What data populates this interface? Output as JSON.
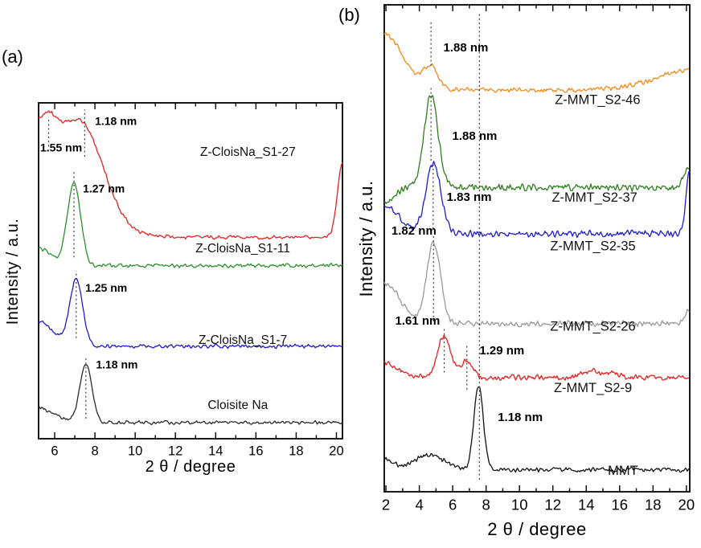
{
  "panels": [
    {
      "id": "a",
      "label": "(a)",
      "xlabel": "2 θ / degree",
      "ylabel": "Intensity / a.u."
    },
    {
      "id": "b",
      "label": "(b)",
      "xlabel": "2 θ / degree",
      "ylabel": "Intensity / a.u."
    }
  ],
  "chart_data": [
    {
      "type": "line",
      "panel": "a",
      "title": "",
      "xlabel": "2 θ / degree",
      "ylabel": "Intensity / a.u.",
      "xlim": [
        5.2,
        20.3
      ],
      "xticks": [
        6,
        8,
        10,
        12,
        14,
        16,
        18,
        20
      ],
      "grid": false,
      "legend": "inline-labels",
      "series": [
        {
          "name": "Cloisite Na",
          "color": "#2a2a2a",
          "seed": 11,
          "label_x": 15.1,
          "label_y": 0.098,
          "profile": {
            "base": 0.048,
            "noise": 0.013,
            "bg": [],
            "peaks": [
              {
                "x": 7.55,
                "h": 0.175,
                "w": 0.3
              },
              {
                "x": 4.9,
                "h": 0.05,
                "w": 0.9
              }
            ]
          },
          "peak_labels": [
            {
              "text": "1.18 nm",
              "x": 8.05,
              "y": 0.218
            }
          ],
          "vlines": [
            {
              "x": 7.55,
              "y1": 0.06,
              "y2": 0.245
            }
          ]
        },
        {
          "name": "Z-CloisNa_S1-7",
          "color": "#1c1ccf",
          "seed": 22,
          "label_x": 15.35,
          "label_y": 0.292,
          "profile": {
            "base": 0.275,
            "noise": 0.014,
            "bg": [
              {
                "type": "left",
                "h": 0.075,
                "w": 1.0
              }
            ],
            "peaks": [
              {
                "x": 7.07,
                "h": 0.195,
                "w": 0.33
              }
            ]
          },
          "peak_labels": [
            {
              "text": "1.25 nm",
              "x": 7.52,
              "y": 0.447
            }
          ],
          "vlines": [
            {
              "x": 7.07,
              "y1": 0.3,
              "y2": 0.5
            }
          ]
        },
        {
          "name": "Z-CloisNa_S1-11",
          "color": "#2a8f2a",
          "seed": 33,
          "label_x": 15.35,
          "label_y": 0.565,
          "profile": {
            "base": 0.515,
            "noise": 0.014,
            "bg": [
              {
                "type": "left",
                "h": 0.05,
                "w": 0.9
              }
            ],
            "peaks": [
              {
                "x": 6.96,
                "h": 0.25,
                "w": 0.33
              }
            ]
          },
          "peak_labels": [
            {
              "text": "1.27 nm",
              "x": 7.4,
              "y": 0.742
            }
          ],
          "vlines": [
            {
              "x": 6.96,
              "y1": 0.54,
              "y2": 0.8
            }
          ]
        },
        {
          "name": "Z-CloisNa_S1-27",
          "color": "#e82020",
          "seed": 44,
          "label_x": 15.6,
          "label_y": 0.852,
          "profile": {
            "base": 0.6,
            "noise": 0.013,
            "bg": [
              {
                "type": "sigmoid",
                "h": 0.35,
                "x0": 8.6,
                "k": 0.55
              },
              {
                "type": "right",
                "h": 0.22,
                "w": 0.35
              }
            ],
            "peaks": [
              {
                "x": 5.7,
                "h": 0.025,
                "w": 0.25
              },
              {
                "x": 7.49,
                "h": 0.03,
                "w": 0.4
              }
            ]
          },
          "peak_labels": [
            {
              "text": "1.55 nm",
              "x": 5.28,
              "y": 0.864
            },
            {
              "text": "1.18 nm",
              "x": 8.0,
              "y": 0.943
            }
          ],
          "vlines": [
            {
              "x": 5.7,
              "y1": 0.87,
              "y2": 0.955
            },
            {
              "x": 7.49,
              "y1": 0.84,
              "y2": 0.98
            }
          ]
        }
      ]
    },
    {
      "type": "line",
      "panel": "b",
      "title": "",
      "xlabel": "2 θ / degree",
      "ylabel": "Intensity / a.u.",
      "xlim": [
        1.9,
        20.2
      ],
      "xticks": [
        2,
        4,
        6,
        8,
        10,
        12,
        14,
        16,
        18,
        20
      ],
      "grid": false,
      "legend": "inline-labels",
      "series": [
        {
          "name": "MMT",
          "color": "#111111",
          "seed": 55,
          "label_x": 16.2,
          "label_y": 0.042,
          "profile": {
            "base": 0.045,
            "noise": 0.011,
            "bg": [
              {
                "type": "left",
                "h": 0.02,
                "w": 0.8
              }
            ],
            "peaks": [
              {
                "x": 7.55,
                "h": 0.175,
                "w": 0.28
              },
              {
                "x": 4.6,
                "h": 0.03,
                "w": 0.9
              }
            ]
          },
          "peak_labels": [
            {
              "text": "1.18 nm",
              "x": 8.7,
              "y": 0.152
            }
          ],
          "vlines": [
            {
              "x": 7.6,
              "y1": 0.025,
              "y2": 0.985
            }
          ]
        },
        {
          "name": "Z-MMT_S2-9",
          "color": "#e81e1e",
          "seed": 66,
          "label_x": 14.4,
          "label_y": 0.212,
          "profile": {
            "base": 0.235,
            "noise": 0.013,
            "bg": [
              {
                "type": "left",
                "h": 0.03,
                "w": 1.2
              }
            ],
            "peaks": [
              {
                "x": 5.49,
                "h": 0.085,
                "w": 0.4
              },
              {
                "x": 6.85,
                "h": 0.035,
                "w": 0.35
              },
              {
                "x": 14.3,
                "h": 0.013,
                "w": 0.5
              },
              {
                "x": 15.6,
                "h": 0.01,
                "w": 0.4
              }
            ]
          },
          "peak_labels": [
            {
              "text": "1.61 nm",
              "x": 2.55,
              "y": 0.35
            },
            {
              "text": "1.29 nm",
              "x": 7.6,
              "y": 0.289
            }
          ],
          "vlines": [
            {
              "x": 5.49,
              "y1": 0.245,
              "y2": 0.335
            },
            {
              "x": 6.85,
              "y1": 0.21,
              "y2": 0.3
            }
          ]
        },
        {
          "name": "Z-MMT_S2-26",
          "color": "#999999",
          "seed": 77,
          "label_x": 14.4,
          "label_y": 0.338,
          "profile": {
            "base": 0.345,
            "noise": 0.014,
            "bg": [
              {
                "type": "left",
                "h": 0.085,
                "w": 1.3
              },
              {
                "type": "right",
                "h": 0.03,
                "w": 0.4
              }
            ],
            "peaks": [
              {
                "x": 4.85,
                "h": 0.165,
                "w": 0.42
              }
            ]
          },
          "peak_labels": [
            {
              "text": "1.82 nm",
              "x": 2.33,
              "y": 0.535
            }
          ],
          "vlines": [
            {
              "x": 4.85,
              "y1": 0.35,
              "y2": 0.525
            }
          ]
        },
        {
          "name": "Z-MMT_S2-35",
          "color": "#1c1ccf",
          "seed": 88,
          "label_x": 14.4,
          "label_y": 0.503,
          "profile": {
            "base": 0.53,
            "noise": 0.016,
            "bg": [
              {
                "type": "left",
                "h": 0.06,
                "w": 1.2
              },
              {
                "type": "right",
                "h": 0.13,
                "w": 0.3
              }
            ],
            "peaks": [
              {
                "x": 4.83,
                "h": 0.145,
                "w": 0.45
              }
            ]
          },
          "peak_labels": [
            {
              "text": "1.83 nm",
              "x": 5.64,
              "y": 0.604
            }
          ],
          "vlines": [
            {
              "x": 4.83,
              "y1": 0.54,
              "y2": 0.675
            }
          ]
        },
        {
          "name": "Z-MMT_S2-37",
          "color": "#2f7d1f",
          "seed": 99,
          "label_x": 14.5,
          "label_y": 0.603,
          "profile": {
            "base": 0.625,
            "noise": 0.018,
            "bg": [
              {
                "type": "left",
                "h": -0.03,
                "w": 0.8
              },
              {
                "type": "right",
                "h": 0.04,
                "w": 0.5
              }
            ],
            "peaks": [
              {
                "x": 4.7,
                "h": 0.19,
                "w": 0.42
              }
            ]
          },
          "peak_labels": [
            {
              "text": "1.88 nm",
              "x": 5.97,
              "y": 0.729
            }
          ],
          "vlines": [
            {
              "x": 4.7,
              "y1": 0.68,
              "y2": 0.83
            }
          ]
        },
        {
          "name": "Z-MMT_S2-46",
          "color": "#ef8b1d",
          "seed": 110,
          "label_x": 14.68,
          "label_y": 0.803,
          "profile": {
            "base": 0.825,
            "noise": 0.012,
            "bg": [
              {
                "type": "left",
                "h": 0.115,
                "w": 1.6
              },
              {
                "type": "right",
                "h": 0.04,
                "w": 3.0
              }
            ],
            "peaks": [
              {
                "x": 4.7,
                "h": 0.045,
                "w": 0.45
              }
            ]
          },
          "peak_labels": [
            {
              "text": "1.88 nm",
              "x": 5.44,
              "y": 0.911
            }
          ],
          "vlines": [
            {
              "x": 4.7,
              "y1": 0.875,
              "y2": 0.965
            }
          ]
        }
      ]
    }
  ]
}
